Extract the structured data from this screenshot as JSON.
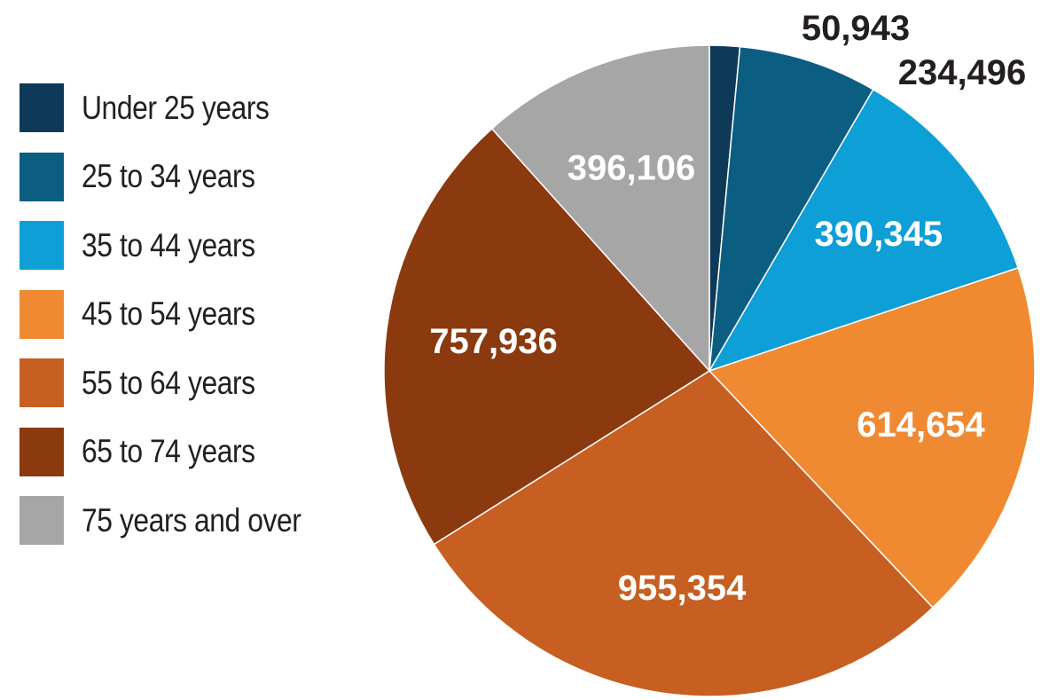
{
  "chart_data": {
    "type": "pie",
    "title": "",
    "categories": [
      "Under 25 years",
      "25 to 34 years",
      "35 to 44 years",
      "45 to 54 years",
      "55 to 64 years",
      "65 to 74 years",
      "75 years and over"
    ],
    "values": [
      50943,
      234496,
      390345,
      614654,
      955354,
      757936,
      396106
    ],
    "data_labels": [
      "50,943",
      "234,496",
      "390,345",
      "614,654",
      "955,354",
      "757,936",
      "396,106"
    ],
    "colors": [
      "#0e3a58",
      "#0b5d82",
      "#0e9fd6",
      "#ef8a32",
      "#c65f21",
      "#8b3a0f",
      "#a6a6a6"
    ],
    "label_colors": [
      "#231f20",
      "#231f20",
      "#ffffff",
      "#ffffff",
      "#ffffff",
      "#ffffff",
      "#ffffff"
    ],
    "label_position": [
      "outside",
      "outside",
      "inside",
      "inside",
      "inside",
      "inside",
      "inside"
    ],
    "start": "12 o'clock",
    "direction": "clockwise",
    "legend_position": "left"
  }
}
